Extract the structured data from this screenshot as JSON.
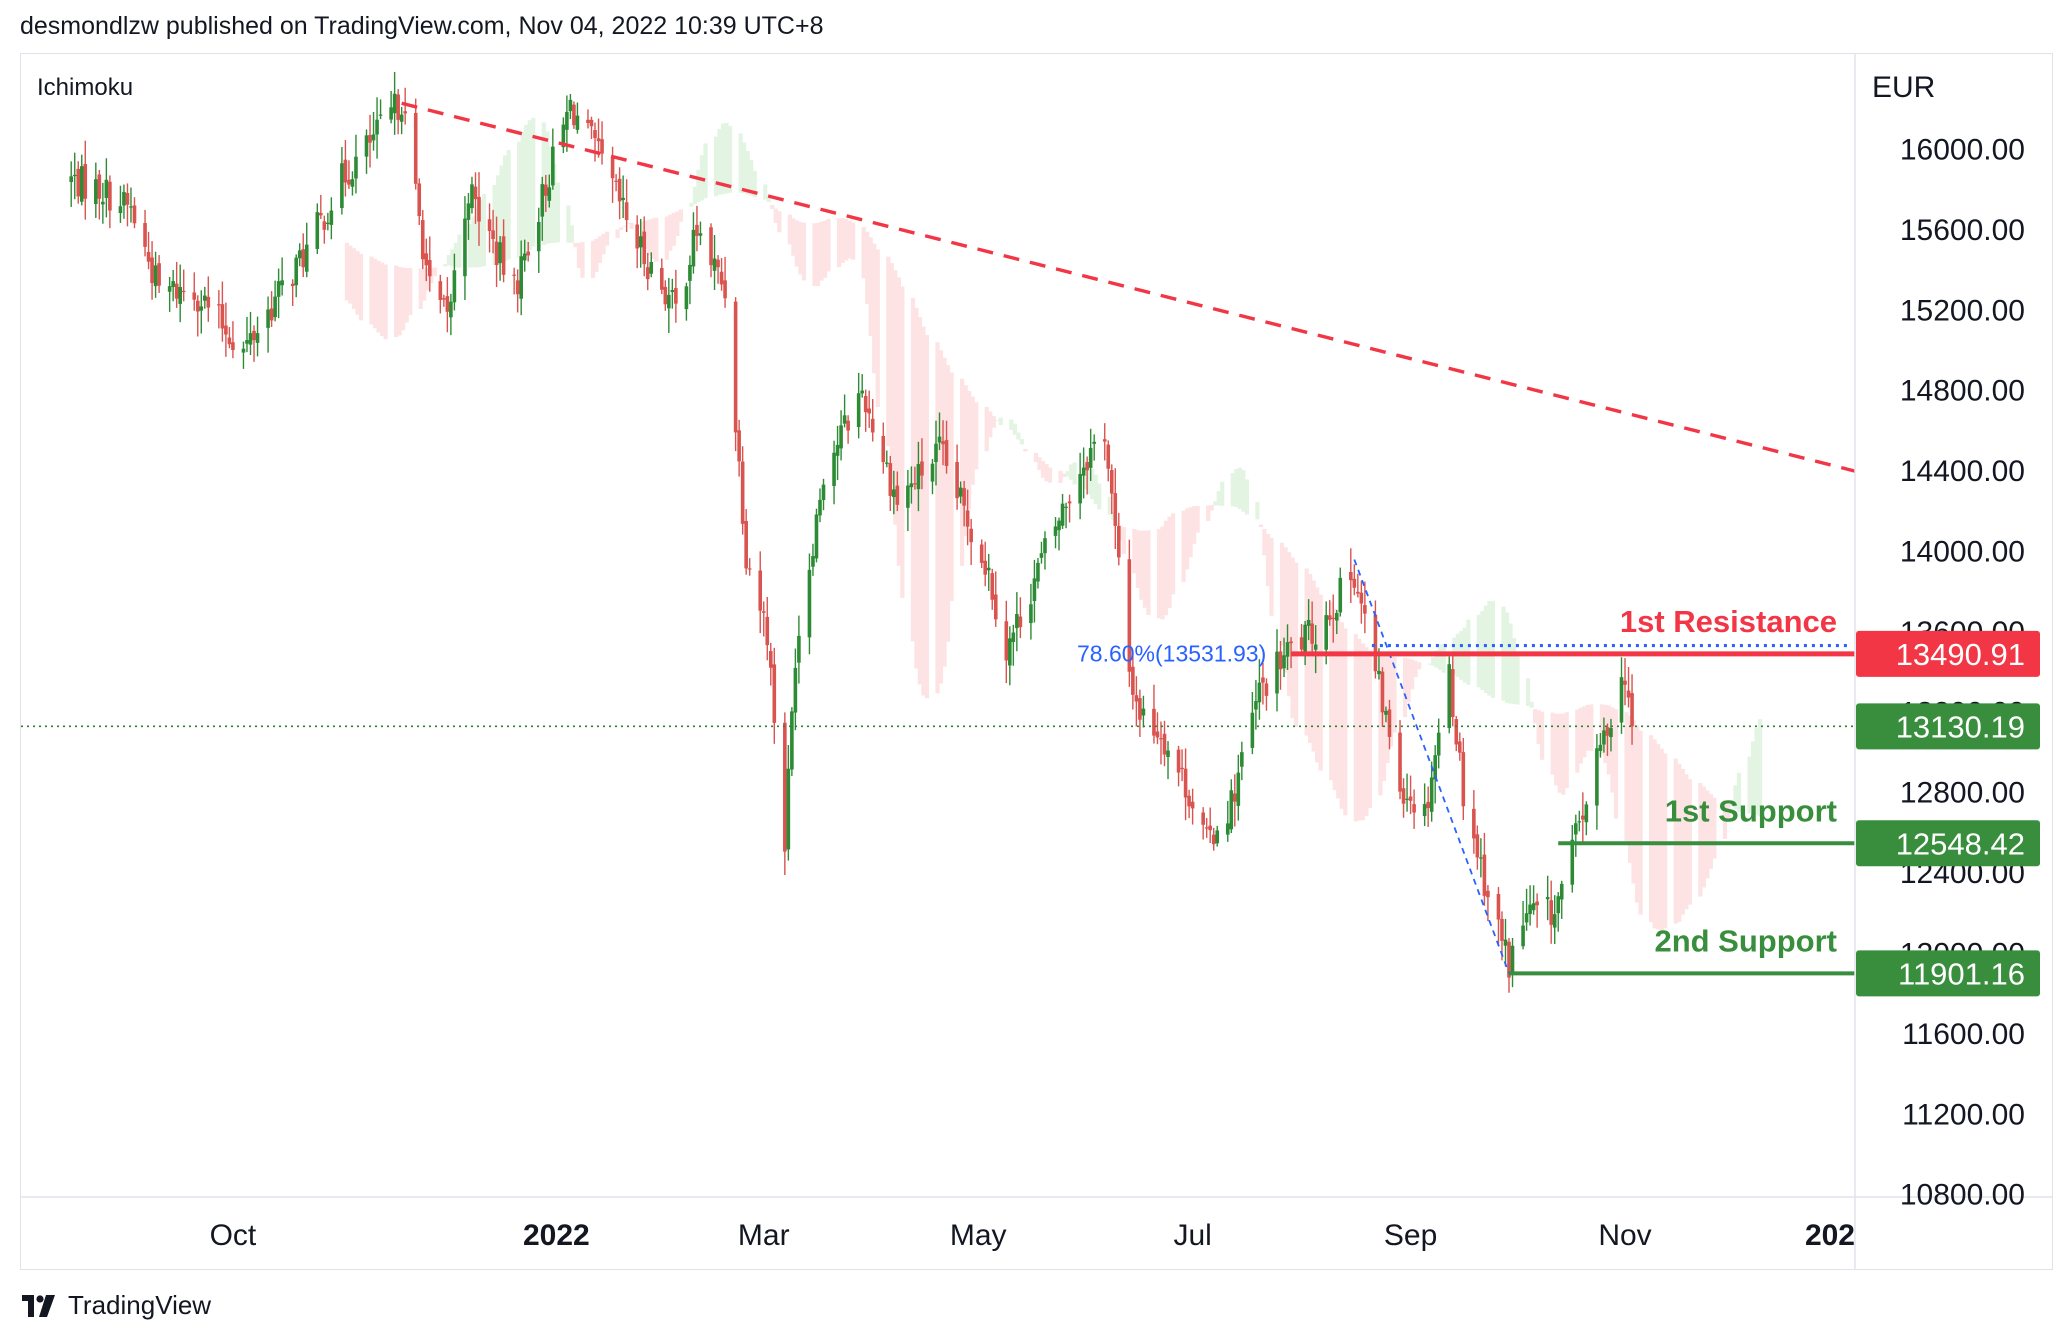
{
  "header": {
    "text": "desmondlzw published on TradingView.com, Nov 04, 2022 10:39 UTC+8"
  },
  "indicator_label": "Ichimoku",
  "footer": {
    "brand": "TradingView",
    "logo_icon": "tradingview-logo-icon"
  },
  "colors": {
    "up": "#2e8b35",
    "down": "#d9534f",
    "resistance": "#f23645",
    "support": "#388e3c",
    "fib": "#2962ff",
    "cloud_bull": "#e3f4e3",
    "cloud_bear": "#fde3e3"
  },
  "chart_data": {
    "type": "candlestick",
    "currency": "EUR",
    "y_ticks": [
      "16000.00",
      "15600.00",
      "15200.00",
      "14800.00",
      "14400.00",
      "14000.00",
      "13600.00",
      "13200.00",
      "12800.00",
      "12400.00",
      "12000.00",
      "11600.00",
      "11200.00",
      "10800.00"
    ],
    "x_ticks": [
      "Oct",
      "2022",
      "Mar",
      "May",
      "Jul",
      "Sep",
      "Nov",
      "202"
    ],
    "ylim": [
      10800,
      16300
    ],
    "last_price": "13130.19",
    "levels": [
      {
        "name": "1st Resistance",
        "value": "13490.91",
        "kind": "resistance"
      },
      {
        "name": "1st Support",
        "value": "12548.42",
        "kind": "support"
      },
      {
        "name": "2nd Support",
        "value": "11901.16",
        "kind": "support"
      }
    ],
    "fib_label": "78.60%(13531.93)",
    "trendline": [
      [
        "2021-11-18",
        16230
      ],
      [
        "2023-11-03",
        13065
      ]
    ],
    "anchors": [
      [
        "2021-08-16",
        15850
      ],
      [
        "2021-08-25",
        15800
      ],
      [
        "2021-09-02",
        15700
      ],
      [
        "2021-09-10",
        15300
      ],
      [
        "2021-09-20",
        15300
      ],
      [
        "2021-10-04",
        15000
      ],
      [
        "2021-10-13",
        15250
      ],
      [
        "2021-10-22",
        15500
      ],
      [
        "2021-11-01",
        15850
      ],
      [
        "2021-11-12",
        16100
      ],
      [
        "2021-11-18",
        16250
      ],
      [
        "2021-11-26",
        15300
      ],
      [
        "2021-12-01",
        15150
      ],
      [
        "2021-12-07",
        15800
      ],
      [
        "2021-12-20",
        15300
      ],
      [
        "2021-12-30",
        15880
      ],
      [
        "2022-01-05",
        16220
      ],
      [
        "2022-01-12",
        16000
      ],
      [
        "2022-01-25",
        15500
      ],
      [
        "2022-02-04",
        15200
      ],
      [
        "2022-02-10",
        15600
      ],
      [
        "2022-02-18",
        15300
      ],
      [
        "2022-02-24",
        14000
      ],
      [
        "2022-03-02",
        13600
      ],
      [
        "2022-03-07",
        12550
      ],
      [
        "2022-03-10",
        13500
      ],
      [
        "2022-03-18",
        14400
      ],
      [
        "2022-03-29",
        14800
      ],
      [
        "2022-04-08",
        14250
      ],
      [
        "2022-04-20",
        14500
      ],
      [
        "2022-05-04",
        13900
      ],
      [
        "2022-05-09",
        13500
      ],
      [
        "2022-05-20",
        14000
      ],
      [
        "2022-05-31",
        14450
      ],
      [
        "2022-06-06",
        14600
      ],
      [
        "2022-06-13",
        13400
      ],
      [
        "2022-06-16",
        13200
      ],
      [
        "2022-06-22",
        13100
      ],
      [
        "2022-06-30",
        12800
      ],
      [
        "2022-07-05",
        12550
      ],
      [
        "2022-07-12",
        12750
      ],
      [
        "2022-07-20",
        13300
      ],
      [
        "2022-07-29",
        13520
      ],
      [
        "2022-08-05",
        13600
      ],
      [
        "2022-08-16",
        13900
      ],
      [
        "2022-08-22",
        13400
      ],
      [
        "2022-08-29",
        12850
      ],
      [
        "2022-09-05",
        12700
      ],
      [
        "2022-09-12",
        13400
      ],
      [
        "2022-09-16",
        12800
      ],
      [
        "2022-09-23",
        12300
      ],
      [
        "2022-09-29",
        11950
      ],
      [
        "2022-10-04",
        12200
      ],
      [
        "2022-10-12",
        12200
      ],
      [
        "2022-10-20",
        12700
      ],
      [
        "2022-10-28",
        13200
      ],
      [
        "2022-11-01",
        13400
      ],
      [
        "2022-11-03",
        13130
      ]
    ]
  }
}
